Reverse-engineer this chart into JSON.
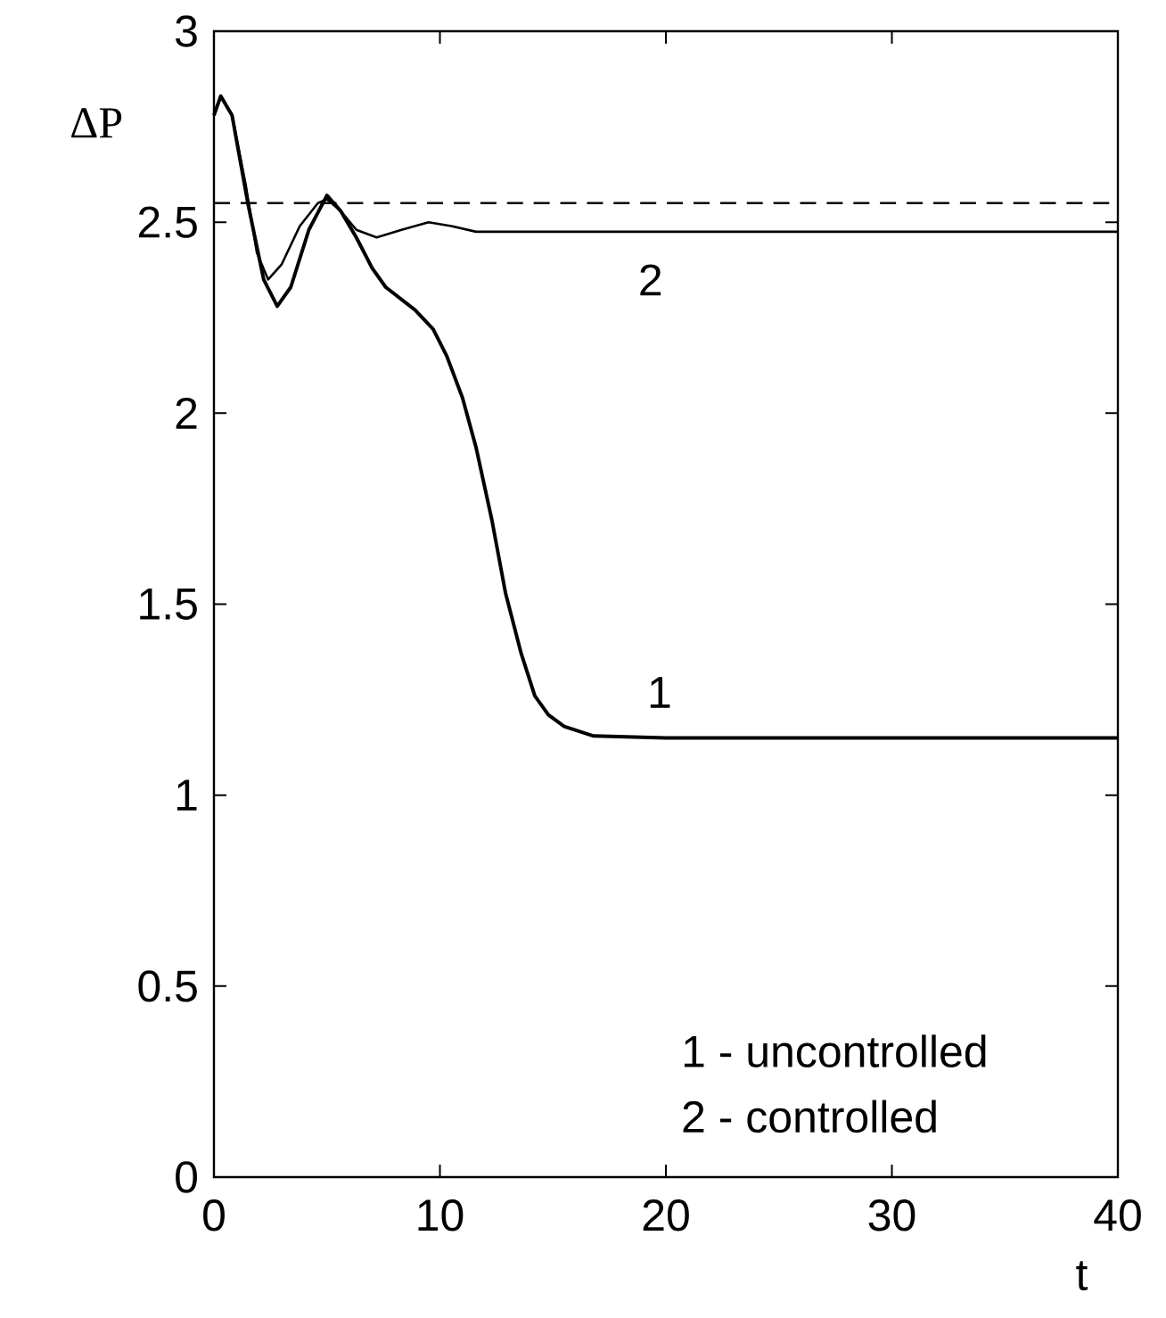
{
  "chart_data": {
    "type": "line",
    "xlabel": "t",
    "ylabel": "ΔP",
    "xlim": [
      0,
      40
    ],
    "ylim": [
      0,
      3
    ],
    "xticks": [
      0,
      10,
      20,
      30,
      40
    ],
    "yticks": [
      0,
      0.5,
      1,
      1.5,
      2,
      2.5,
      3
    ],
    "series": [
      {
        "color": "#000000",
        "x": [
          0,
          0.3,
          0.8,
          1.5,
          2.2,
          2.8,
          3.4,
          4.2,
          5.0,
          5.6,
          6.3,
          7.0,
          7.6,
          8.9,
          9.7,
          10.3,
          11.0,
          11.6,
          12.3,
          12.9,
          13.6,
          14.2,
          14.8,
          15.5,
          16.8,
          20,
          40
        ],
        "values": [
          2.78,
          2.83,
          2.78,
          2.55,
          2.35,
          2.28,
          2.33,
          2.48,
          2.57,
          2.53,
          2.46,
          2.38,
          2.33,
          2.27,
          2.22,
          2.15,
          2.04,
          1.91,
          1.72,
          1.53,
          1.37,
          1.26,
          1.21,
          1.18,
          1.155,
          1.15,
          1.15
        ]
      },
      {
        "color": "#000000",
        "x": [
          0,
          0.3,
          0.8,
          1.4,
          1.9,
          2.4,
          3.0,
          3.8,
          4.6,
          5.0,
          5.6,
          6.3,
          7.2,
          8.3,
          9.5,
          10.5,
          11.6,
          20,
          40
        ],
        "values": [
          2.78,
          2.83,
          2.78,
          2.6,
          2.42,
          2.35,
          2.39,
          2.49,
          2.55,
          2.56,
          2.53,
          2.48,
          2.46,
          2.48,
          2.5,
          2.49,
          2.475,
          2.475,
          2.475
        ]
      }
    ],
    "ref_lines": [
      {
        "axis": "y",
        "value": 2.55,
        "line_style": "dashed",
        "color": "#000000"
      }
    ],
    "annotations": [
      "2",
      "1",
      "1 - uncontrolled",
      "2 - controlled"
    ]
  }
}
